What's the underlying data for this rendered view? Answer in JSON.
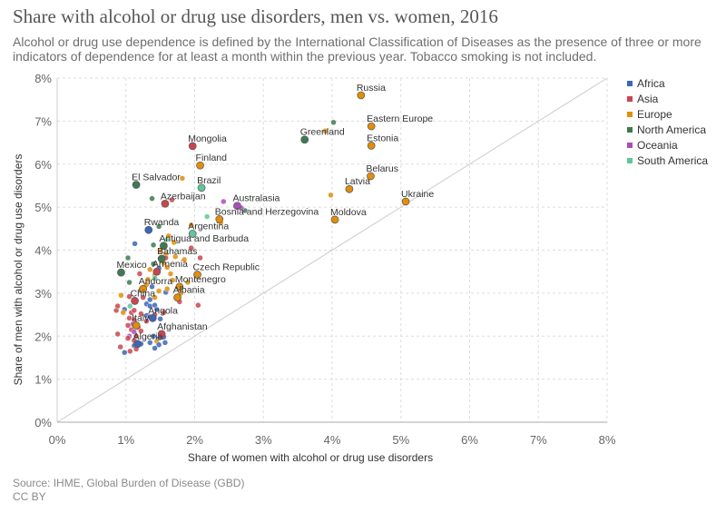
{
  "title": "Share with alcohol or drug use disorders, men vs. women, 2016",
  "subtitle": "Alcohol or drug use dependence is defined by the International Classification of Diseases as the presence of three or more indicators of dependence for at least a month within the previous year. Tobacco smoking is not included.",
  "source": "Source: IHME, Global Burden of Disease (GBD)",
  "license": "CC BY",
  "chart_data": {
    "type": "scatter",
    "title": "Share with alcohol or drug use disorders, men vs. women, 2016",
    "xlabel": "Share of women with alcohol or drug use disorders",
    "ylabel": "Share of men with alcohol or drug use disorders",
    "xlim": [
      0,
      8
    ],
    "ylim": [
      0,
      8
    ],
    "x_ticks": [
      "0%",
      "1%",
      "2%",
      "3%",
      "4%",
      "5%",
      "6%",
      "7%",
      "8%"
    ],
    "y_ticks": [
      "0%",
      "1%",
      "2%",
      "3%",
      "4%",
      "5%",
      "6%",
      "7%",
      "8%"
    ],
    "grid": true,
    "reference_line": "x = y",
    "legend_position": "right",
    "colors": {
      "Africa": "#3c66b8",
      "Asia": "#c9464f",
      "Europe": "#e08e0b",
      "North America": "#3d7a52",
      "Oceania": "#a94db7",
      "South America": "#5fc79a"
    },
    "legend": [
      "Africa",
      "Asia",
      "Europe",
      "North America",
      "Oceania",
      "South America"
    ],
    "labeled_points": [
      {
        "label": "Russia",
        "region": "Europe",
        "x": 4.42,
        "y": 7.6
      },
      {
        "label": "Eastern Europe",
        "region": "Europe",
        "x": 4.57,
        "y": 6.88
      },
      {
        "label": "Greenland",
        "region": "North America",
        "x": 3.6,
        "y": 6.57
      },
      {
        "label": "Estonia",
        "region": "Europe",
        "x": 4.57,
        "y": 6.43
      },
      {
        "label": "Mongolia",
        "region": "Asia",
        "x": 1.97,
        "y": 6.42
      },
      {
        "label": "Finland",
        "region": "Europe",
        "x": 2.08,
        "y": 5.97
      },
      {
        "label": "Belarus",
        "region": "Europe",
        "x": 4.56,
        "y": 5.72
      },
      {
        "label": "El Salvador",
        "region": "North America",
        "x": 1.15,
        "y": 5.52
      },
      {
        "label": "Brazil",
        "region": "South America",
        "x": 2.1,
        "y": 5.45
      },
      {
        "label": "Latvia",
        "region": "Europe",
        "x": 4.25,
        "y": 5.42
      },
      {
        "label": "Ukraine",
        "region": "Europe",
        "x": 5.07,
        "y": 5.13
      },
      {
        "label": "Azerbaijan",
        "region": "Asia",
        "x": 1.57,
        "y": 5.08
      },
      {
        "label": "Australasia",
        "region": "Oceania",
        "x": 2.62,
        "y": 5.03
      },
      {
        "label": "Bosnia and Herzegovina",
        "region": "Europe",
        "x": 2.36,
        "y": 4.72
      },
      {
        "label": "Moldova",
        "region": "Europe",
        "x": 4.04,
        "y": 4.71
      },
      {
        "label": "Rwanda",
        "region": "Africa",
        "x": 1.33,
        "y": 4.47
      },
      {
        "label": "Argentina",
        "region": "South America",
        "x": 1.97,
        "y": 4.38
      },
      {
        "label": "Antigua and Barbuda",
        "region": "North America",
        "x": 1.55,
        "y": 4.1
      },
      {
        "label": "Bahamas",
        "region": "North America",
        "x": 1.52,
        "y": 3.8
      },
      {
        "label": "Mexico",
        "region": "North America",
        "x": 0.93,
        "y": 3.48
      },
      {
        "label": "Armenia",
        "region": "Asia",
        "x": 1.45,
        "y": 3.5
      },
      {
        "label": "Czech Republic",
        "region": "Europe",
        "x": 2.04,
        "y": 3.43
      },
      {
        "label": "Montenegro",
        "region": "Europe",
        "x": 1.78,
        "y": 3.15
      },
      {
        "label": "Andorra",
        "region": "Europe",
        "x": 1.25,
        "y": 3.1
      },
      {
        "label": "Albania",
        "region": "Europe",
        "x": 1.75,
        "y": 2.9
      },
      {
        "label": "China",
        "region": "Asia",
        "x": 1.13,
        "y": 2.82
      },
      {
        "label": "Angola",
        "region": "Africa",
        "x": 1.39,
        "y": 2.42
      },
      {
        "label": "Italy",
        "region": "Europe",
        "x": 1.15,
        "y": 2.25
      },
      {
        "label": "Afghanistan",
        "region": "Asia",
        "x": 1.52,
        "y": 2.05
      },
      {
        "label": "Algeria",
        "region": "Africa",
        "x": 1.17,
        "y": 1.82
      }
    ],
    "other_points": [
      {
        "region": "North America",
        "x": 4.02,
        "y": 6.97
      },
      {
        "region": "Europe",
        "x": 3.9,
        "y": 6.77
      },
      {
        "region": "Europe",
        "x": 3.98,
        "y": 5.28
      },
      {
        "region": "Europe",
        "x": 1.82,
        "y": 5.67
      },
      {
        "region": "North America",
        "x": 1.38,
        "y": 5.2
      },
      {
        "region": "Asia",
        "x": 1.67,
        "y": 5.17
      },
      {
        "region": "Oceania",
        "x": 2.42,
        "y": 5.13
      },
      {
        "region": "North America",
        "x": 2.73,
        "y": 4.92
      },
      {
        "region": "Oceania",
        "x": 2.68,
        "y": 4.98
      },
      {
        "region": "South America",
        "x": 2.18,
        "y": 4.78
      },
      {
        "region": "Europe",
        "x": 2.38,
        "y": 4.64
      },
      {
        "region": "North America",
        "x": 1.48,
        "y": 4.55
      },
      {
        "region": "Europe",
        "x": 1.95,
        "y": 4.58
      },
      {
        "region": "Africa",
        "x": 1.13,
        "y": 4.15
      },
      {
        "region": "North America",
        "x": 1.4,
        "y": 4.12
      },
      {
        "region": "South America",
        "x": 1.6,
        "y": 4.25
      },
      {
        "region": "Europe",
        "x": 1.62,
        "y": 4.33
      },
      {
        "region": "Europe",
        "x": 1.7,
        "y": 4.18
      },
      {
        "region": "Oceania",
        "x": 1.95,
        "y": 4.36
      },
      {
        "region": "Asia",
        "x": 1.95,
        "y": 4.05
      },
      {
        "region": "Europe",
        "x": 1.5,
        "y": 3.98
      },
      {
        "region": "Europe",
        "x": 1.58,
        "y": 3.9
      },
      {
        "region": "Asia",
        "x": 1.58,
        "y": 3.82
      },
      {
        "region": "Europe",
        "x": 1.72,
        "y": 3.85
      },
      {
        "region": "Europe",
        "x": 1.85,
        "y": 3.78
      },
      {
        "region": "Asia",
        "x": 2.08,
        "y": 3.82
      },
      {
        "region": "North America",
        "x": 1.4,
        "y": 3.68
      },
      {
        "region": "Europe",
        "x": 1.55,
        "y": 3.7
      },
      {
        "region": "Africa",
        "x": 1.48,
        "y": 3.58
      },
      {
        "region": "North America",
        "x": 1.03,
        "y": 3.82
      },
      {
        "region": "Europe",
        "x": 1.35,
        "y": 3.55
      },
      {
        "region": "Europe",
        "x": 1.42,
        "y": 3.42
      },
      {
        "region": "South America",
        "x": 1.42,
        "y": 3.35
      },
      {
        "region": "Europe",
        "x": 1.6,
        "y": 3.6
      },
      {
        "region": "Europe",
        "x": 1.65,
        "y": 3.45
      },
      {
        "region": "Europe",
        "x": 1.68,
        "y": 3.3
      },
      {
        "region": "Europe",
        "x": 1.9,
        "y": 3.25
      },
      {
        "region": "Europe",
        "x": 1.3,
        "y": 3.2
      },
      {
        "region": "Europe",
        "x": 1.32,
        "y": 3.32
      },
      {
        "region": "Asia",
        "x": 1.2,
        "y": 3.45
      },
      {
        "region": "North America",
        "x": 1.05,
        "y": 3.25
      },
      {
        "region": "Africa",
        "x": 1.38,
        "y": 3.15
      },
      {
        "region": "Asia",
        "x": 1.22,
        "y": 3.08
      },
      {
        "region": "Europe",
        "x": 1.48,
        "y": 3.05
      },
      {
        "region": "Africa",
        "x": 1.58,
        "y": 3.02
      },
      {
        "region": "Europe",
        "x": 1.6,
        "y": 3.1
      },
      {
        "region": "Europe",
        "x": 1.8,
        "y": 3.0
      },
      {
        "region": "Europe",
        "x": 0.93,
        "y": 2.95
      },
      {
        "region": "Asia",
        "x": 1.05,
        "y": 2.92
      },
      {
        "region": "Asia",
        "x": 1.25,
        "y": 2.9
      },
      {
        "region": "Africa",
        "x": 1.35,
        "y": 2.85
      },
      {
        "region": "Europe",
        "x": 1.42,
        "y": 2.9
      },
      {
        "region": "Asia",
        "x": 1.78,
        "y": 2.8
      },
      {
        "region": "Africa",
        "x": 1.3,
        "y": 2.75
      },
      {
        "region": "Africa",
        "x": 1.35,
        "y": 2.7
      },
      {
        "region": "Africa",
        "x": 1.42,
        "y": 2.72
      },
      {
        "region": "Africa",
        "x": 1.45,
        "y": 2.62
      },
      {
        "region": "South America",
        "x": 1.06,
        "y": 2.7
      },
      {
        "region": "Asia",
        "x": 0.86,
        "y": 2.6
      },
      {
        "region": "Asia",
        "x": 0.88,
        "y": 2.7
      },
      {
        "region": "Africa",
        "x": 0.98,
        "y": 2.62
      },
      {
        "region": "Europe",
        "x": 0.96,
        "y": 2.55
      },
      {
        "region": "Asia",
        "x": 1.08,
        "y": 2.55
      },
      {
        "region": "Asia",
        "x": 1.12,
        "y": 2.6
      },
      {
        "region": "Asia",
        "x": 1.22,
        "y": 2.52
      },
      {
        "region": "Africa",
        "x": 1.3,
        "y": 2.48
      },
      {
        "region": "Africa",
        "x": 1.35,
        "y": 2.45
      },
      {
        "region": "Asia",
        "x": 1.42,
        "y": 2.5
      },
      {
        "region": "Africa",
        "x": 1.5,
        "y": 2.4
      },
      {
        "region": "Asia",
        "x": 1.55,
        "y": 2.55
      },
      {
        "region": "Asia",
        "x": 2.05,
        "y": 2.72
      },
      {
        "region": "Asia",
        "x": 1.05,
        "y": 2.42
      },
      {
        "region": "Asia",
        "x": 1.12,
        "y": 2.38
      },
      {
        "region": "Asia",
        "x": 1.3,
        "y": 2.35
      },
      {
        "region": "Oceania",
        "x": 1.1,
        "y": 2.28
      },
      {
        "region": "Asia",
        "x": 1.03,
        "y": 2.25
      },
      {
        "region": "Asia",
        "x": 1.18,
        "y": 2.2
      },
      {
        "region": "Asia",
        "x": 1.08,
        "y": 2.15
      },
      {
        "region": "Oceania",
        "x": 1.12,
        "y": 2.1
      },
      {
        "region": "Asia",
        "x": 1.22,
        "y": 2.12
      },
      {
        "region": "Asia",
        "x": 0.88,
        "y": 2.05
      },
      {
        "region": "Oceania",
        "x": 1.05,
        "y": 2.0
      },
      {
        "region": "Asia",
        "x": 1.15,
        "y": 2.0
      },
      {
        "region": "Africa",
        "x": 1.4,
        "y": 2.0
      },
      {
        "region": "Africa",
        "x": 1.48,
        "y": 1.95
      },
      {
        "region": "Africa",
        "x": 1.55,
        "y": 1.98
      },
      {
        "region": "Asia",
        "x": 1.03,
        "y": 1.95
      },
      {
        "region": "Asia",
        "x": 1.12,
        "y": 1.9
      },
      {
        "region": "Europe",
        "x": 1.45,
        "y": 1.88
      },
      {
        "region": "Africa",
        "x": 1.35,
        "y": 1.85
      },
      {
        "region": "Africa",
        "x": 1.57,
        "y": 1.85
      },
      {
        "region": "Africa",
        "x": 1.22,
        "y": 1.82
      },
      {
        "region": "Africa",
        "x": 1.12,
        "y": 1.78
      },
      {
        "region": "Africa",
        "x": 1.48,
        "y": 1.8
      },
      {
        "region": "Asia",
        "x": 0.92,
        "y": 1.75
      },
      {
        "region": "Asia",
        "x": 1.15,
        "y": 1.7
      },
      {
        "region": "Africa",
        "x": 1.42,
        "y": 1.72
      },
      {
        "region": "Africa",
        "x": 0.98,
        "y": 1.62
      },
      {
        "region": "Asia",
        "x": 1.06,
        "y": 1.65
      }
    ]
  }
}
